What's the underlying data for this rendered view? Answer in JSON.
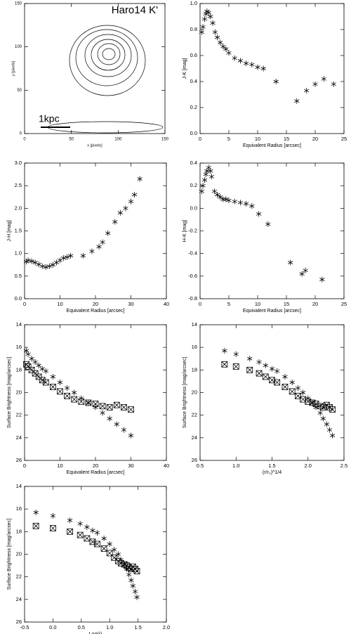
{
  "chart_data": [
    {
      "type": "contour",
      "title": "Haro14 K'",
      "annotation": "1kpc",
      "xlabel": "x [pixels]",
      "ylabel": "y [pixels]",
      "xlim": [
        0,
        150
      ],
      "ylim": [
        0,
        150
      ],
      "xticks": [
        0,
        50,
        100,
        150
      ],
      "yticks": [
        0,
        50,
        100,
        150
      ]
    },
    {
      "type": "scatter",
      "xlabel": "Equivalent Radius [arcsec]",
      "ylabel": "J-K [mag]",
      "xlim": [
        0,
        25
      ],
      "ylim": [
        0,
        1.0
      ],
      "xticks": [
        0,
        5,
        10,
        15,
        20,
        25
      ],
      "yticks": [
        {
          "value": 0,
          "label": "0.0"
        },
        0.2,
        0.4,
        0.6,
        0.8,
        {
          "value": 1.0,
          "label": "1.0"
        }
      ],
      "series": [
        {
          "marker": "asterisk",
          "color": "#000000",
          "x": [
            0.3,
            0.5,
            0.8,
            1.0,
            1.2,
            1.5,
            1.8,
            2.2,
            2.6,
            3.0,
            3.5,
            4.0,
            4.5,
            5,
            6,
            7,
            8,
            9,
            10,
            11,
            13.2,
            16.8,
            18.5,
            20,
            21.5,
            23.2
          ],
          "values": [
            0.78,
            0.82,
            0.88,
            0.92,
            0.94,
            0.93,
            0.9,
            0.85,
            0.78,
            0.74,
            0.7,
            0.67,
            0.65,
            0.62,
            0.58,
            0.56,
            0.54,
            0.53,
            0.51,
            0.5,
            0.4,
            0.25,
            0.33,
            0.38,
            0.42,
            0.38
          ]
        }
      ]
    },
    {
      "type": "scatter",
      "xlabel": "Equivalent Radius [arcsec]",
      "ylabel": "J-H [mag]",
      "xlim": [
        0,
        40
      ],
      "ylim": [
        0,
        3.0
      ],
      "xticks": [
        0,
        10,
        20,
        30,
        40
      ],
      "yticks": [
        {
          "value": 0,
          "label": "0.0"
        },
        0.5,
        {
          "value": 1,
          "label": "1.0"
        },
        1.5,
        {
          "value": 2,
          "label": "2.0"
        },
        2.5,
        {
          "value": 3,
          "label": "3.0"
        }
      ],
      "series": [
        {
          "marker": "asterisk",
          "color": "#000000",
          "x": [
            0.5,
            1,
            2,
            3,
            4,
            5,
            6,
            7,
            8,
            9,
            10,
            11,
            12,
            13,
            16.5,
            19,
            21,
            22,
            23.5,
            25.5,
            27,
            28.5,
            30,
            31,
            32.5
          ],
          "values": [
            0.82,
            0.85,
            0.83,
            0.8,
            0.76,
            0.72,
            0.7,
            0.72,
            0.75,
            0.8,
            0.85,
            0.9,
            0.92,
            0.95,
            0.95,
            1.05,
            1.15,
            1.25,
            1.45,
            1.7,
            1.9,
            2.0,
            2.15,
            2.3,
            2.65
          ]
        }
      ]
    },
    {
      "type": "scatter",
      "xlabel": "Equivalent Radius [arcsec]",
      "ylabel": "H-K [mag]",
      "xlim": [
        0,
        25
      ],
      "ylim": [
        -0.8,
        0.4
      ],
      "xticks": [
        0,
        5,
        10,
        15,
        20,
        25
      ],
      "yticks": [
        -0.8,
        -0.6,
        -0.4,
        -0.2,
        {
          "value": 0,
          "label": "0.0"
        },
        0.2,
        0.4
      ],
      "series": [
        {
          "marker": "asterisk",
          "color": "#000000",
          "x": [
            0.3,
            0.5,
            0.8,
            1,
            1.2,
            1.5,
            1.8,
            2,
            2.5,
            3,
            3.5,
            4,
            4.5,
            5,
            6,
            7,
            8,
            9,
            10.2,
            11.8,
            15.7,
            17.7,
            18.3,
            21.2
          ],
          "values": [
            0.15,
            0.2,
            0.25,
            0.3,
            0.33,
            0.36,
            0.33,
            0.28,
            0.15,
            0.12,
            0.1,
            0.08,
            0.08,
            0.07,
            0.06,
            0.05,
            0.04,
            0.02,
            -0.05,
            -0.14,
            -0.48,
            -0.58,
            -0.55,
            -0.63
          ]
        }
      ]
    },
    {
      "type": "scatter",
      "xlabel": "Equivalent Radius [arcsec]",
      "ylabel": "Surface Brightness [mag/arcsec]",
      "xlim": [
        0,
        40
      ],
      "ylim": [
        26,
        14
      ],
      "xticks": [
        0,
        10,
        20,
        30,
        40
      ],
      "yticks": [
        26,
        24,
        22,
        20,
        18,
        16,
        14
      ],
      "series": [
        {
          "marker": "asterisk",
          "color": "#000000",
          "x": [
            0.5,
            1,
            2,
            3,
            4,
            5,
            6,
            8,
            10,
            12,
            14,
            16,
            18,
            20,
            22,
            24,
            26,
            28,
            30
          ],
          "values": [
            16.3,
            16.6,
            17.0,
            17.3,
            17.6,
            17.9,
            18.1,
            18.6,
            19.1,
            19.6,
            20.0,
            20.5,
            20.9,
            21.3,
            21.8,
            22.3,
            22.8,
            23.3,
            23.8
          ]
        },
        {
          "marker": "boxed-x",
          "color": "#000000",
          "x": [
            0.5,
            1,
            2,
            3,
            4,
            5,
            6,
            8,
            10,
            12,
            14,
            16,
            18,
            20,
            22,
            24,
            26,
            28,
            30
          ],
          "values": [
            17.5,
            17.7,
            18.0,
            18.3,
            18.6,
            18.9,
            19.1,
            19.5,
            19.9,
            20.3,
            20.6,
            20.8,
            20.9,
            21.0,
            21.2,
            21.3,
            21.1,
            21.3,
            21.5
          ]
        }
      ]
    },
    {
      "type": "scatter",
      "xlabel": "(r/r₀)^1/4",
      "ylabel": "Surface Brightness [mag/arcsec]",
      "xlim": [
        0.5,
        2.5
      ],
      "ylim": [
        26,
        14
      ],
      "xticks": [
        0.5,
        {
          "value": 1,
          "label": "1.0"
        },
        1.5,
        {
          "value": 2,
          "label": "2.0"
        },
        2.5
      ],
      "yticks": [
        26,
        24,
        22,
        20,
        18,
        16,
        14
      ],
      "series": [
        {
          "marker": "asterisk",
          "color": "#000000",
          "x": [
            0.84,
            1.0,
            1.19,
            1.32,
            1.41,
            1.5,
            1.57,
            1.68,
            1.78,
            1.86,
            1.93,
            2.0,
            2.06,
            2.11,
            2.17,
            2.21,
            2.26,
            2.3,
            2.34
          ],
          "values": [
            16.3,
            16.6,
            17.0,
            17.3,
            17.6,
            17.9,
            18.1,
            18.6,
            19.1,
            19.6,
            20.0,
            20.5,
            20.9,
            21.3,
            21.8,
            22.3,
            22.8,
            23.3,
            23.8
          ]
        },
        {
          "marker": "boxed-x",
          "color": "#000000",
          "x": [
            0.84,
            1.0,
            1.19,
            1.32,
            1.41,
            1.5,
            1.57,
            1.68,
            1.78,
            1.86,
            1.93,
            2.0,
            2.06,
            2.11,
            2.17,
            2.21,
            2.26,
            2.3,
            2.34
          ],
          "values": [
            17.5,
            17.7,
            18.0,
            18.3,
            18.6,
            18.9,
            19.1,
            19.5,
            19.9,
            20.3,
            20.6,
            20.8,
            20.9,
            21.0,
            21.2,
            21.3,
            21.1,
            21.3,
            21.5
          ]
        }
      ]
    },
    {
      "type": "scatter",
      "xlabel": "Log(r)",
      "ylabel": "Surface Brightness [mag/arcsec]",
      "xlim": [
        -0.5,
        2.0
      ],
      "ylim": [
        26,
        14
      ],
      "xticks": [
        -0.5,
        {
          "value": 0,
          "label": "0.0"
        },
        0.5,
        {
          "value": 1,
          "label": "1.0"
        },
        1.5,
        {
          "value": 2,
          "label": "2.0"
        }
      ],
      "yticks": [
        26,
        24,
        22,
        20,
        18,
        16,
        14
      ],
      "series": [
        {
          "marker": "asterisk",
          "color": "#000000",
          "x": [
            -0.3,
            0,
            0.3,
            0.48,
            0.6,
            0.7,
            0.78,
            0.9,
            1.0,
            1.08,
            1.15,
            1.2,
            1.26,
            1.3,
            1.34,
            1.38,
            1.41,
            1.45,
            1.48
          ],
          "values": [
            16.3,
            16.6,
            17.0,
            17.3,
            17.6,
            17.9,
            18.1,
            18.6,
            19.1,
            19.6,
            20.0,
            20.5,
            20.9,
            21.3,
            21.8,
            22.3,
            22.8,
            23.3,
            23.8
          ]
        },
        {
          "marker": "boxed-x",
          "color": "#000000",
          "x": [
            -0.3,
            0,
            0.3,
            0.48,
            0.6,
            0.7,
            0.78,
            0.9,
            1.0,
            1.08,
            1.15,
            1.2,
            1.26,
            1.3,
            1.34,
            1.38,
            1.41,
            1.45,
            1.48
          ],
          "values": [
            17.5,
            17.7,
            18.0,
            18.3,
            18.6,
            18.9,
            19.1,
            19.5,
            19.9,
            20.3,
            20.6,
            20.8,
            20.9,
            21.0,
            21.2,
            21.3,
            21.1,
            21.3,
            21.5
          ]
        }
      ]
    }
  ]
}
